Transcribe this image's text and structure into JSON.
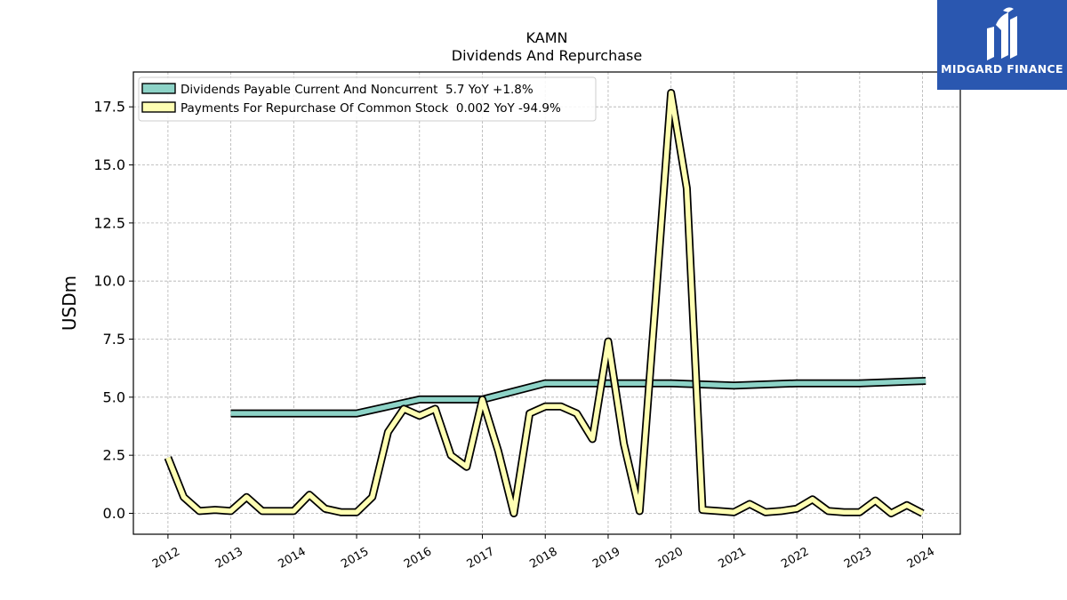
{
  "logo": {
    "text": "MIDGARD FINANCE",
    "bg_color": "#2a57b0"
  },
  "chart_data": {
    "type": "line",
    "title": "KAMN",
    "subtitle": "Dividends And Repurchase",
    "xlabel": "",
    "ylabel": "USDm",
    "xlim": [
      2011.45,
      2024.6
    ],
    "ylim": [
      -0.9,
      19.0
    ],
    "yticks": [
      0.0,
      2.5,
      5.0,
      7.5,
      10.0,
      12.5,
      15.0,
      17.5
    ],
    "ytick_labels": [
      "0.0",
      "2.5",
      "5.0",
      "7.5",
      "10.0",
      "12.5",
      "15.0",
      "17.5"
    ],
    "xticks": [
      2012,
      2013,
      2014,
      2015,
      2016,
      2017,
      2018,
      2019,
      2020,
      2021,
      2022,
      2023,
      2024
    ],
    "xtick_labels": [
      "2012",
      "2013",
      "2014",
      "2015",
      "2016",
      "2017",
      "2018",
      "2019",
      "2020",
      "2021",
      "2022",
      "2023",
      "2024"
    ],
    "grid": true,
    "legend_position": "top-left",
    "series": [
      {
        "name": "Dividends Payable Current And Noncurrent  5.7 YoY +1.8%",
        "color": "#8dd3c7",
        "x": [
          2013.0,
          2015.0,
          2016.0,
          2017.0,
          2018.0,
          2019.0,
          2020.0,
          2021.0,
          2022.0,
          2023.0,
          2024.05
        ],
        "y": [
          4.3,
          4.3,
          4.9,
          4.9,
          5.6,
          5.6,
          5.6,
          5.5,
          5.6,
          5.6,
          5.7
        ]
      },
      {
        "name": "Payments For Repurchase Of Common Stock  0.002 YoY -94.9%",
        "color": "#ffffb3",
        "x": [
          2012.0,
          2012.25,
          2012.5,
          2012.75,
          2013.0,
          2013.25,
          2013.5,
          2013.75,
          2014.0,
          2014.25,
          2014.5,
          2014.75,
          2015.0,
          2015.25,
          2015.5,
          2015.75,
          2016.0,
          2016.25,
          2016.5,
          2016.75,
          2017.0,
          2017.25,
          2017.5,
          2017.75,
          2018.0,
          2018.25,
          2018.5,
          2018.75,
          2019.0,
          2019.25,
          2019.5,
          2019.75,
          2020.0,
          2020.25,
          2020.5,
          2020.75,
          2021.0,
          2021.25,
          2021.5,
          2021.75,
          2022.0,
          2022.25,
          2022.5,
          2022.75,
          2023.0,
          2023.25,
          2023.5,
          2023.75,
          2024.0
        ],
        "y": [
          2.4,
          0.7,
          0.1,
          0.15,
          0.1,
          0.7,
          0.1,
          0.1,
          0.1,
          0.8,
          0.2,
          0.05,
          0.05,
          0.7,
          3.5,
          4.5,
          4.2,
          4.5,
          2.5,
          2.0,
          4.9,
          2.7,
          0.0,
          4.3,
          4.6,
          4.6,
          4.3,
          3.2,
          7.4,
          3.0,
          0.1,
          9.0,
          18.1,
          14.0,
          0.15,
          0.1,
          0.05,
          0.4,
          0.05,
          0.1,
          0.2,
          0.6,
          0.1,
          0.05,
          0.05,
          0.55,
          0.0,
          0.35,
          0.0
        ]
      }
    ]
  }
}
